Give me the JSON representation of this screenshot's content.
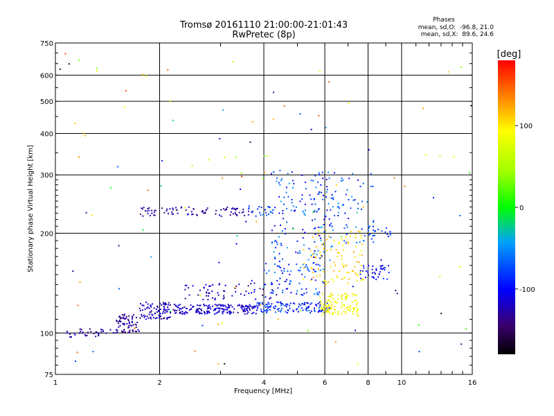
{
  "chart_data": {
    "type": "scatter",
    "title": "Tromsø 20161110 21:00:00-21:01:43",
    "subtitle": "RwPretec (8p)",
    "xlabel": "Frequency [MHz]",
    "ylabel": "Stationary phase Virtual Height [km]",
    "x_scale": "log",
    "y_scale": "log",
    "xlim": [
      1,
      16
    ],
    "ylim": [
      75,
      750
    ],
    "x_ticks": [
      1,
      2,
      4,
      6,
      8,
      10,
      16
    ],
    "y_ticks": [
      75,
      100,
      200,
      300,
      400,
      500,
      600,
      750
    ],
    "grid": true,
    "stats": {
      "heading": "Phases",
      "line1": "mean, sd,O:  -96.8, 21.0",
      "line2": "mean, sd,X:  89.6, 24.6"
    },
    "colorbar": {
      "label": "[deg]",
      "range": [
        -180,
        180
      ],
      "ticks": [
        100,
        0,
        -100
      ],
      "colormap": "rainbow"
    },
    "point_groups": [
      {
        "f": [
          1.08,
          1.5
        ],
        "h": [
          97,
          103
        ],
        "phase": [
          -140,
          -110
        ],
        "n": 35
      },
      {
        "f": [
          1.5,
          1.75
        ],
        "h": [
          100,
          114
        ],
        "phase": [
          -150,
          -115
        ],
        "n": 70
      },
      {
        "f": [
          1.75,
          2.2
        ],
        "h": [
          110,
          124
        ],
        "phase": [
          -140,
          -105
        ],
        "n": 90
      },
      {
        "f": [
          2.2,
          3.8
        ],
        "h": [
          114,
          122
        ],
        "phase": [
          -135,
          -100
        ],
        "n": 180
      },
      {
        "f": [
          3.8,
          6.2
        ],
        "h": [
          115,
          124
        ],
        "phase": [
          -120,
          -60
        ],
        "n": 130
      },
      {
        "f": [
          5.8,
          7.5
        ],
        "h": [
          112,
          132
        ],
        "phase": [
          70,
          110
        ],
        "n": 120
      },
      {
        "f": [
          2.3,
          4.7
        ],
        "h": [
          125,
          144
        ],
        "phase": [
          -145,
          -95
        ],
        "n": 70
      },
      {
        "f": [
          4.0,
          6.0
        ],
        "h": [
          130,
          165
        ],
        "phase": [
          -110,
          -50
        ],
        "n": 80
      },
      {
        "f": [
          5.2,
          7.8
        ],
        "h": [
          140,
          205
        ],
        "phase": [
          80,
          130
        ],
        "n": 110
      },
      {
        "f": [
          4.2,
          6.3
        ],
        "h": [
          165,
          310
        ],
        "phase": [
          -120,
          -40
        ],
        "n": 160
      },
      {
        "f": [
          6.2,
          8.3
        ],
        "h": [
          185,
          305
        ],
        "phase": [
          -100,
          -40
        ],
        "n": 60
      },
      {
        "f": [
          1.75,
          3.8
        ],
        "h": [
          225,
          240
        ],
        "phase": [
          -145,
          -110
        ],
        "n": 90
      },
      {
        "f": [
          3.6,
          4.3
        ],
        "h": [
          225,
          245
        ],
        "phase": [
          -100,
          -60
        ],
        "n": 20
      },
      {
        "f": [
          7.5,
          9.3
        ],
        "h": [
          145,
          160
        ],
        "phase": [
          -120,
          -80
        ],
        "n": 40
      },
      {
        "f": [
          8.0,
          9.3
        ],
        "h": [
          190,
          210
        ],
        "phase": [
          -100,
          -60
        ],
        "n": 20
      },
      {
        "f": [
          1.0,
          16.0
        ],
        "h": [
          80,
          700
        ],
        "phase": [
          -170,
          170
        ],
        "n": 120
      }
    ]
  }
}
